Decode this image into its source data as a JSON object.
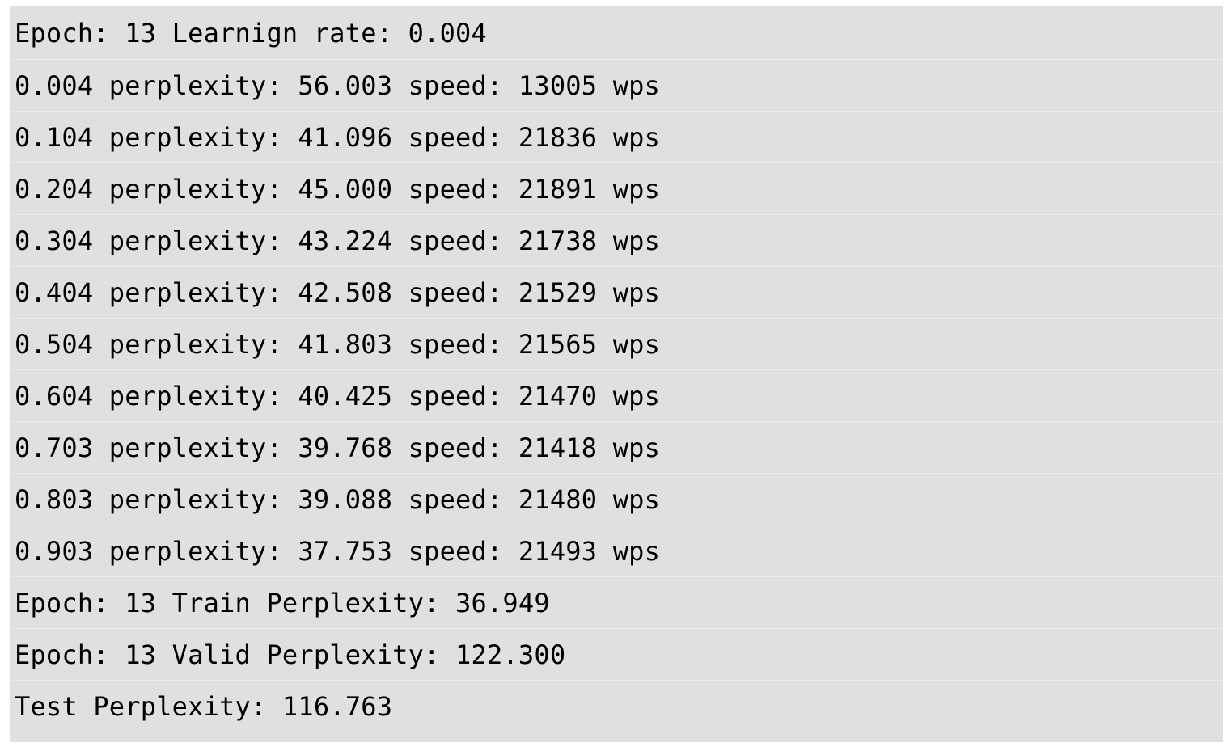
{
  "log": {
    "lines": [
      "Epoch: 13 Learnign rate: 0.004",
      "0.004 perplexity: 56.003 speed: 13005 wps",
      "0.104 perplexity: 41.096 speed: 21836 wps",
      "0.204 perplexity: 45.000 speed: 21891 wps",
      "0.304 perplexity: 43.224 speed: 21738 wps",
      "0.404 perplexity: 42.508 speed: 21529 wps",
      "0.504 perplexity: 41.803 speed: 21565 wps",
      "0.604 perplexity: 40.425 speed: 21470 wps",
      "0.703 perplexity: 39.768 speed: 21418 wps",
      "0.803 perplexity: 39.088 speed: 21480 wps",
      "0.903 perplexity: 37.753 speed: 21493 wps",
      "Epoch: 13 Train Perplexity: 36.949",
      "Epoch: 13 Valid Perplexity: 122.300",
      "Test Perplexity: 116.763"
    ]
  },
  "colors": {
    "background": "#e0e0e0",
    "text": "#000000"
  }
}
